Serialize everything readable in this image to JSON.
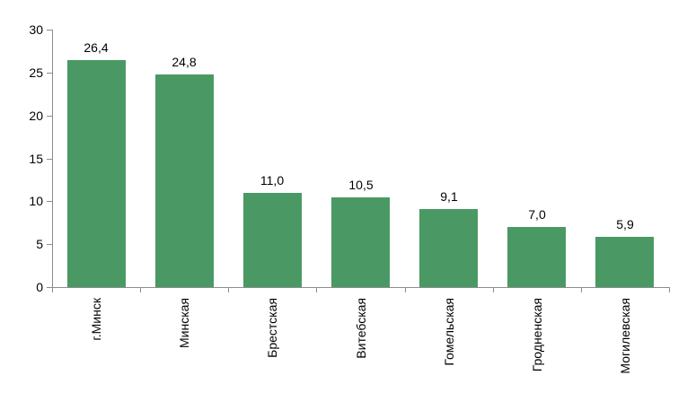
{
  "chart_data": {
    "type": "bar",
    "categories": [
      "г.Минск",
      "Минская",
      "Брестская",
      "Витебская",
      "Гомельская",
      "Гродненская",
      "Могилевская"
    ],
    "values": [
      26.4,
      24.8,
      11.0,
      10.5,
      9.1,
      7.0,
      5.9
    ],
    "value_labels": [
      "26,4",
      "24,8",
      "11,0",
      "10,5",
      "9,1",
      "7,0",
      "5,9"
    ],
    "title": "",
    "xlabel": "",
    "ylabel": "",
    "ylim": [
      0,
      30
    ],
    "yticks": [
      0,
      5,
      10,
      15,
      20,
      25,
      30
    ],
    "ytick_labels": [
      "0",
      "5",
      "10",
      "15",
      "20",
      "25",
      "30"
    ],
    "grid": false,
    "legend": "none",
    "bar_color": "#4a9965",
    "axis_color": "#8c8c8c",
    "text_color": "#000000"
  }
}
